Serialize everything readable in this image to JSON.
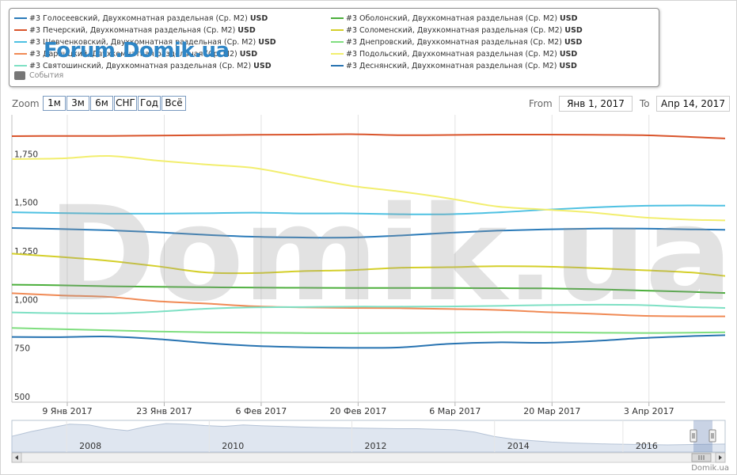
{
  "legend": {
    "items": [
      {
        "label": "#3 Голосеевский, Двухкомнатная раздельная (Ср. М2)",
        "unit": "USD",
        "color": "#2b7bb9"
      },
      {
        "label": "#3 Печерский, Двухкомнатная раздельная (Ср. М2)",
        "unit": "USD",
        "color": "#d9542b"
      },
      {
        "label": "#3 Шевченковский, Двухкомнатная раздельная (Ср. М2)",
        "unit": "USD",
        "color": "#4ec1e2"
      },
      {
        "label": "#3 Дарницкий, Двухкомнатная раздельная (Ср. М2)",
        "unit": "USD",
        "color": "#f08a55"
      },
      {
        "label": "#3 Святошинский, Двухкомнатная раздельная (Ср. М2)",
        "unit": "USD",
        "color": "#7ee0c4"
      },
      {
        "label": "#3 Оболонский, Двухкомнатная раздельная (Ср. М2)",
        "unit": "USD",
        "color": "#4caf3c"
      },
      {
        "label": "#3 Соломенский, Двухкомнатная раздельная (Ср. М2)",
        "unit": "USD",
        "color": "#d4cf2a"
      },
      {
        "label": "#3 Днепровский, Двухкомнатная раздельная (Ср. М2)",
        "unit": "USD",
        "color": "#7fde7f"
      },
      {
        "label": "#3 Подольский, Двухкомнатная раздельная (Ср. М2)",
        "unit": "USD",
        "color": "#f2ee6e"
      },
      {
        "label": "#3 Деснянский, Двухкомнатная раздельная (Ср. М2)",
        "unit": "USD",
        "color": "#2773b1"
      }
    ],
    "events_label": "События",
    "event_dots": [
      {
        "name": "event-dot-blue",
        "color": "#6fa8d8"
      },
      {
        "name": "event-dot-yellow",
        "color": "#d9de8c"
      },
      {
        "name": "event-dot-pink",
        "color": "#d9829b"
      }
    ],
    "forum_watermark": "Forum.Domik.ua"
  },
  "range_selector": {
    "zoom_label": "Zoom",
    "buttons": [
      "1м",
      "3м",
      "6м",
      "СНГ",
      "Год",
      "Всё"
    ],
    "from_label": "From",
    "from_value": "Янв 1, 2017",
    "to_label": "To",
    "to_value": "Апр 14, 2017"
  },
  "watermark": "Domik.ua",
  "credit": "Domik.ua",
  "chart_data": {
    "type": "line",
    "y_ticks": [
      "500",
      "750",
      "1,000",
      "1,250",
      "1,500",
      "1,750"
    ],
    "ylim": [
      500,
      1980
    ],
    "x_ticks": [
      "9 Янв 2017",
      "23 Янв 2017",
      "6 Фев 2017",
      "20 Фев 2017",
      "6 Мар 2017",
      "20 Мар 2017",
      "3 Апр 2017"
    ],
    "x_tick_days": [
      8,
      22,
      36,
      50,
      64,
      78,
      92
    ],
    "x_range_days": [
      0,
      103
    ],
    "grid": "vertical",
    "x": [
      0,
      7,
      14,
      21,
      28,
      35,
      42,
      49,
      56,
      63,
      70,
      77,
      84,
      91,
      98,
      103
    ],
    "series": [
      {
        "name": "#3 Голосеевский, Двухкомнатная раздельная (Ср. М2)",
        "color": "#2b7bb9",
        "values": [
          1397,
          1392,
          1385,
          1375,
          1362,
          1352,
          1348,
          1348,
          1358,
          1372,
          1383,
          1390,
          1394,
          1394,
          1390,
          1388
        ]
      },
      {
        "name": "#3 Печерский, Двухкомнатная раздельная (Ср. М2)",
        "color": "#d9542b",
        "values": [
          1870,
          1871,
          1871,
          1873,
          1875,
          1877,
          1878,
          1880,
          1875,
          1876,
          1878,
          1878,
          1877,
          1875,
          1866,
          1858
        ]
      },
      {
        "name": "#3 Шевченковский, Двухкомнатная раздельная (Ср. М2)",
        "color": "#4ec1e2",
        "values": [
          1478,
          1474,
          1471,
          1471,
          1473,
          1476,
          1472,
          1472,
          1468,
          1468,
          1477,
          1491,
          1503,
          1511,
          1513,
          1512
        ]
      },
      {
        "name": "#3 Дарницкий, Двухкомнатная раздельная (Ср. М2)",
        "color": "#f08a55",
        "values": [
          1061,
          1050,
          1042,
          1020,
          1008,
          994,
          988,
          985,
          984,
          980,
          975,
          964,
          955,
          945,
          942,
          942
        ]
      },
      {
        "name": "#3 Святошинский, Двухкомнатная раздельная (Ср. М2)",
        "color": "#7ee0c4",
        "values": [
          962,
          958,
          957,
          966,
          981,
          988,
          990,
          992,
          992,
          993,
          996,
          1000,
          1002,
          1000,
          990,
          985
        ]
      },
      {
        "name": "#3 Оболонский, Двухкомнатная раздельная (Ср. М2)",
        "color": "#4caf3c",
        "values": [
          1105,
          1102,
          1097,
          1094,
          1092,
          1090,
          1089,
          1088,
          1088,
          1088,
          1087,
          1086,
          1082,
          1075,
          1068,
          1062
        ]
      },
      {
        "name": "#3 Соломенский, Двухкомнатная раздельная (Ср. М2)",
        "color": "#d4cf2a",
        "values": [
          1265,
          1248,
          1228,
          1200,
          1168,
          1165,
          1175,
          1180,
          1192,
          1195,
          1200,
          1198,
          1190,
          1180,
          1168,
          1150
        ]
      },
      {
        "name": "#3 Днепровский, Двухкомнатная раздельная (Ср. М2)",
        "color": "#7fde7f",
        "values": [
          882,
          876,
          870,
          864,
          860,
          858,
          856,
          855,
          856,
          858,
          860,
          860,
          858,
          856,
          858,
          860
        ]
      },
      {
        "name": "#3 Подольский, Двухкомнатная раздельная (Ср. М2)",
        "color": "#f2ee6e",
        "values": [
          1752,
          1755,
          1768,
          1744,
          1724,
          1706,
          1660,
          1614,
          1585,
          1550,
          1508,
          1492,
          1476,
          1452,
          1440,
          1436
        ]
      },
      {
        "name": "#3 Деснянский, Двухкомнатная раздельная (Ср. М2)",
        "color": "#2773b1",
        "values": [
          836,
          835,
          838,
          825,
          805,
          790,
          783,
          780,
          782,
          800,
          808,
          806,
          815,
          830,
          840,
          845
        ]
      }
    ]
  },
  "navigator": {
    "year_labels": [
      "2008",
      "2010",
      "2012",
      "2014",
      "2016"
    ],
    "year_positions": [
      0.11,
      0.31,
      0.51,
      0.71,
      0.89
    ],
    "series_values": [
      0.55,
      0.72,
      0.85,
      0.98,
      0.95,
      0.82,
      0.75,
      0.9,
      1.0,
      0.98,
      0.93,
      0.9,
      0.95,
      0.92,
      0.9,
      0.88,
      0.86,
      0.85,
      0.84,
      0.83,
      0.82,
      0.82,
      0.8,
      0.78,
      0.7,
      0.55,
      0.45,
      0.4,
      0.35,
      0.32,
      0.3,
      0.28,
      0.27,
      0.26,
      0.25,
      0.26,
      0.27,
      0.28
    ]
  }
}
